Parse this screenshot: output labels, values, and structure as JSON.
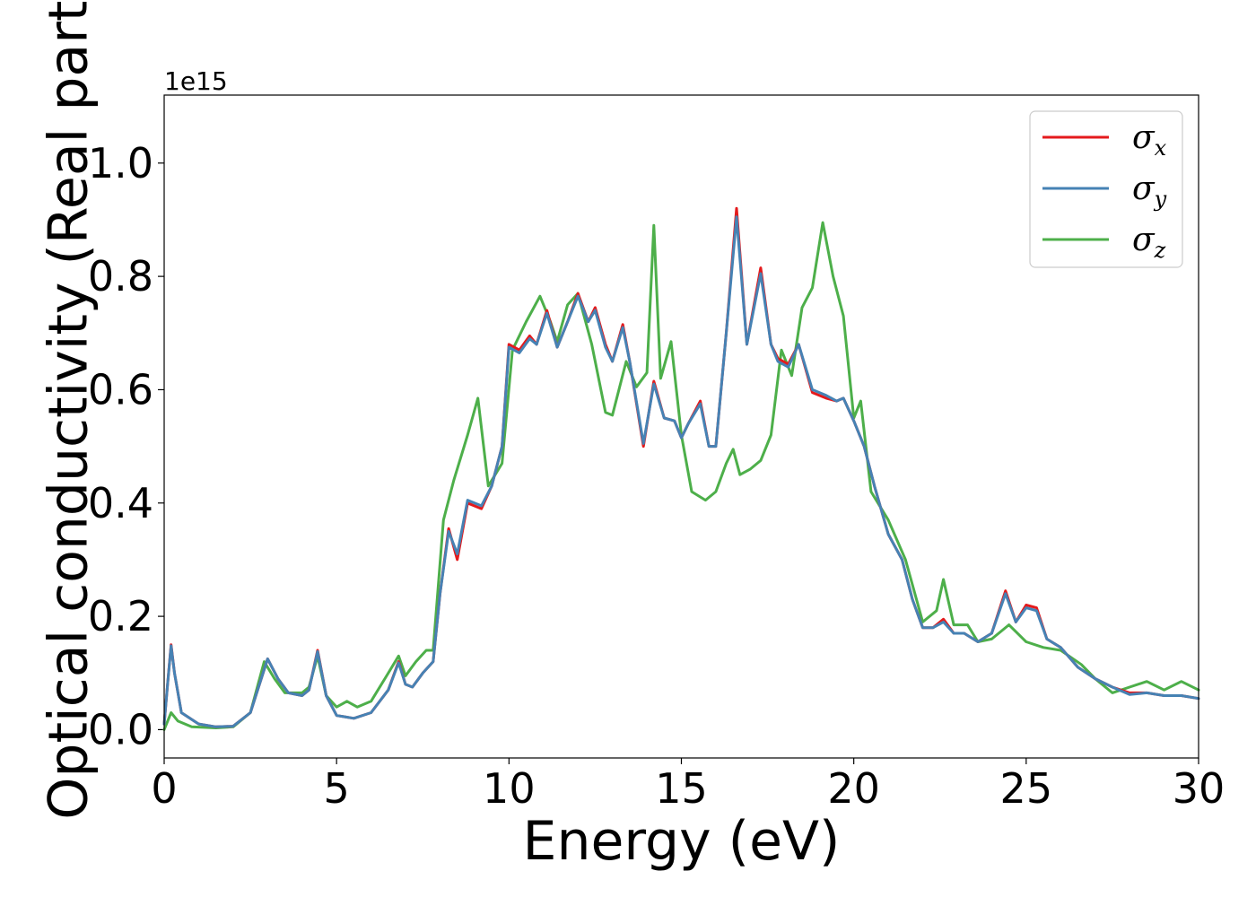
{
  "chart_data": {
    "type": "line",
    "title": "",
    "xlabel": "Energy (eV)",
    "ylabel": "Optical conductivity (Real part)",
    "y_offset_label": "1e15",
    "xlim": [
      0,
      30
    ],
    "ylim": [
      -0.05,
      1.12
    ],
    "x_ticks": [
      0,
      5,
      10,
      15,
      20,
      25,
      30
    ],
    "x_tick_labels": [
      "0",
      "5",
      "10",
      "15",
      "20",
      "25",
      "30"
    ],
    "y_ticks": [
      0.0,
      0.2,
      0.4,
      0.6,
      0.8,
      1.0
    ],
    "y_tick_labels": [
      "0.0",
      "0.2",
      "0.4",
      "0.6",
      "0.8",
      "1.0"
    ],
    "grid": false,
    "legend_position": "top-right",
    "series": [
      {
        "name": "σx",
        "symbol": "σ",
        "sub": "x",
        "color": "#e41a1c",
        "points": [
          [
            0,
            0.01
          ],
          [
            0.1,
            0.08
          ],
          [
            0.2,
            0.15
          ],
          [
            0.3,
            0.1
          ],
          [
            0.5,
            0.03
          ],
          [
            1,
            0.01
          ],
          [
            1.5,
            0.005
          ],
          [
            2,
            0.006
          ],
          [
            2.5,
            0.03
          ],
          [
            3,
            0.125
          ],
          [
            3.3,
            0.09
          ],
          [
            3.6,
            0.065
          ],
          [
            4,
            0.06
          ],
          [
            4.2,
            0.07
          ],
          [
            4.45,
            0.14
          ],
          [
            4.7,
            0.06
          ],
          [
            5,
            0.025
          ],
          [
            5.5,
            0.02
          ],
          [
            6,
            0.03
          ],
          [
            6.5,
            0.07
          ],
          [
            6.8,
            0.12
          ],
          [
            7,
            0.08
          ],
          [
            7.2,
            0.075
          ],
          [
            7.5,
            0.1
          ],
          [
            7.8,
            0.12
          ],
          [
            8.0,
            0.24
          ],
          [
            8.25,
            0.355
          ],
          [
            8.5,
            0.3
          ],
          [
            8.8,
            0.4
          ],
          [
            9.2,
            0.39
          ],
          [
            9.5,
            0.43
          ],
          [
            9.8,
            0.5
          ],
          [
            10,
            0.68
          ],
          [
            10.3,
            0.67
          ],
          [
            10.6,
            0.695
          ],
          [
            10.8,
            0.68
          ],
          [
            11.1,
            0.74
          ],
          [
            11.4,
            0.675
          ],
          [
            11.7,
            0.72
          ],
          [
            12.0,
            0.77
          ],
          [
            12.3,
            0.72
          ],
          [
            12.5,
            0.745
          ],
          [
            12.8,
            0.68
          ],
          [
            13.0,
            0.65
          ],
          [
            13.3,
            0.715
          ],
          [
            13.5,
            0.65
          ],
          [
            13.9,
            0.5
          ],
          [
            14.2,
            0.615
          ],
          [
            14.5,
            0.55
          ],
          [
            14.8,
            0.545
          ],
          [
            15.0,
            0.515
          ],
          [
            15.2,
            0.54
          ],
          [
            15.55,
            0.58
          ],
          [
            15.8,
            0.5
          ],
          [
            16.0,
            0.5
          ],
          [
            16.3,
            0.7
          ],
          [
            16.6,
            0.92
          ],
          [
            16.9,
            0.68
          ],
          [
            17.3,
            0.815
          ],
          [
            17.6,
            0.68
          ],
          [
            17.8,
            0.655
          ],
          [
            18.1,
            0.645
          ],
          [
            18.4,
            0.68
          ],
          [
            18.8,
            0.595
          ],
          [
            19.2,
            0.585
          ],
          [
            19.5,
            0.58
          ],
          [
            19.7,
            0.585
          ],
          [
            20,
            0.545
          ],
          [
            20.3,
            0.5
          ],
          [
            20.6,
            0.43
          ],
          [
            21,
            0.345
          ],
          [
            21.4,
            0.3
          ],
          [
            21.7,
            0.23
          ],
          [
            22,
            0.18
          ],
          [
            22.3,
            0.18
          ],
          [
            22.6,
            0.195
          ],
          [
            22.9,
            0.17
          ],
          [
            23.2,
            0.17
          ],
          [
            23.6,
            0.155
          ],
          [
            24.0,
            0.17
          ],
          [
            24.4,
            0.245
          ],
          [
            24.7,
            0.19
          ],
          [
            25,
            0.22
          ],
          [
            25.3,
            0.215
          ],
          [
            25.6,
            0.16
          ],
          [
            26,
            0.145
          ],
          [
            26.5,
            0.11
          ],
          [
            27,
            0.09
          ],
          [
            27.5,
            0.075
          ],
          [
            28,
            0.065
          ],
          [
            28.5,
            0.065
          ],
          [
            29,
            0.06
          ],
          [
            29.5,
            0.06
          ],
          [
            30,
            0.055
          ]
        ]
      },
      {
        "name": "σy",
        "symbol": "σ",
        "sub": "y",
        "color": "#4682b4",
        "points": [
          [
            0,
            0.01
          ],
          [
            0.1,
            0.08
          ],
          [
            0.2,
            0.148
          ],
          [
            0.3,
            0.1
          ],
          [
            0.5,
            0.03
          ],
          [
            1,
            0.01
          ],
          [
            1.5,
            0.005
          ],
          [
            2,
            0.006
          ],
          [
            2.5,
            0.03
          ],
          [
            3,
            0.125
          ],
          [
            3.3,
            0.09
          ],
          [
            3.6,
            0.065
          ],
          [
            4,
            0.06
          ],
          [
            4.2,
            0.07
          ],
          [
            4.45,
            0.138
          ],
          [
            4.7,
            0.06
          ],
          [
            5,
            0.025
          ],
          [
            5.5,
            0.02
          ],
          [
            6,
            0.03
          ],
          [
            6.5,
            0.07
          ],
          [
            6.8,
            0.118
          ],
          [
            7,
            0.08
          ],
          [
            7.2,
            0.075
          ],
          [
            7.5,
            0.1
          ],
          [
            7.8,
            0.12
          ],
          [
            8.0,
            0.24
          ],
          [
            8.25,
            0.35
          ],
          [
            8.5,
            0.31
          ],
          [
            8.8,
            0.405
          ],
          [
            9.2,
            0.395
          ],
          [
            9.5,
            0.43
          ],
          [
            9.8,
            0.5
          ],
          [
            10,
            0.675
          ],
          [
            10.3,
            0.665
          ],
          [
            10.6,
            0.69
          ],
          [
            10.8,
            0.68
          ],
          [
            11.1,
            0.735
          ],
          [
            11.4,
            0.675
          ],
          [
            11.7,
            0.72
          ],
          [
            12.0,
            0.765
          ],
          [
            12.3,
            0.72
          ],
          [
            12.5,
            0.74
          ],
          [
            12.8,
            0.675
          ],
          [
            13.0,
            0.65
          ],
          [
            13.3,
            0.71
          ],
          [
            13.5,
            0.65
          ],
          [
            13.9,
            0.505
          ],
          [
            14.2,
            0.61
          ],
          [
            14.5,
            0.55
          ],
          [
            14.8,
            0.545
          ],
          [
            15.0,
            0.515
          ],
          [
            15.2,
            0.54
          ],
          [
            15.55,
            0.575
          ],
          [
            15.8,
            0.5
          ],
          [
            16.0,
            0.5
          ],
          [
            16.3,
            0.7
          ],
          [
            16.6,
            0.905
          ],
          [
            16.9,
            0.68
          ],
          [
            17.3,
            0.805
          ],
          [
            17.6,
            0.68
          ],
          [
            17.8,
            0.65
          ],
          [
            18.1,
            0.64
          ],
          [
            18.4,
            0.68
          ],
          [
            18.8,
            0.6
          ],
          [
            19.2,
            0.59
          ],
          [
            19.5,
            0.58
          ],
          [
            19.7,
            0.585
          ],
          [
            20,
            0.545
          ],
          [
            20.3,
            0.5
          ],
          [
            20.6,
            0.43
          ],
          [
            21,
            0.345
          ],
          [
            21.4,
            0.3
          ],
          [
            21.7,
            0.23
          ],
          [
            22,
            0.18
          ],
          [
            22.3,
            0.18
          ],
          [
            22.6,
            0.19
          ],
          [
            22.9,
            0.17
          ],
          [
            23.2,
            0.17
          ],
          [
            23.6,
            0.155
          ],
          [
            24.0,
            0.17
          ],
          [
            24.4,
            0.24
          ],
          [
            24.7,
            0.19
          ],
          [
            25,
            0.215
          ],
          [
            25.3,
            0.21
          ],
          [
            25.6,
            0.16
          ],
          [
            26,
            0.145
          ],
          [
            26.5,
            0.11
          ],
          [
            27,
            0.09
          ],
          [
            27.5,
            0.075
          ],
          [
            28,
            0.062
          ],
          [
            28.5,
            0.065
          ],
          [
            29,
            0.06
          ],
          [
            29.5,
            0.06
          ],
          [
            30,
            0.055
          ]
        ]
      },
      {
        "name": "σz",
        "symbol": "σ",
        "sub": "z",
        "color": "#4daf4a",
        "points": [
          [
            0,
            0.0
          ],
          [
            0.2,
            0.03
          ],
          [
            0.4,
            0.015
          ],
          [
            0.8,
            0.005
          ],
          [
            1.5,
            0.003
          ],
          [
            2,
            0.005
          ],
          [
            2.5,
            0.03
          ],
          [
            2.9,
            0.12
          ],
          [
            3.2,
            0.09
          ],
          [
            3.5,
            0.065
          ],
          [
            4,
            0.065
          ],
          [
            4.2,
            0.075
          ],
          [
            4.45,
            0.13
          ],
          [
            4.7,
            0.06
          ],
          [
            5,
            0.04
          ],
          [
            5.3,
            0.05
          ],
          [
            5.6,
            0.04
          ],
          [
            6,
            0.05
          ],
          [
            6.4,
            0.09
          ],
          [
            6.8,
            0.13
          ],
          [
            7.0,
            0.095
          ],
          [
            7.3,
            0.12
          ],
          [
            7.6,
            0.14
          ],
          [
            7.8,
            0.14
          ],
          [
            8.1,
            0.37
          ],
          [
            8.4,
            0.44
          ],
          [
            8.8,
            0.52
          ],
          [
            9.1,
            0.585
          ],
          [
            9.4,
            0.43
          ],
          [
            9.8,
            0.47
          ],
          [
            10.1,
            0.67
          ],
          [
            10.5,
            0.72
          ],
          [
            10.9,
            0.765
          ],
          [
            11.2,
            0.72
          ],
          [
            11.4,
            0.685
          ],
          [
            11.7,
            0.75
          ],
          [
            12.0,
            0.77
          ],
          [
            12.4,
            0.68
          ],
          [
            12.8,
            0.56
          ],
          [
            13.0,
            0.555
          ],
          [
            13.4,
            0.65
          ],
          [
            13.7,
            0.605
          ],
          [
            14.0,
            0.63
          ],
          [
            14.2,
            0.89
          ],
          [
            14.4,
            0.62
          ],
          [
            14.7,
            0.685
          ],
          [
            15.0,
            0.52
          ],
          [
            15.3,
            0.42
          ],
          [
            15.7,
            0.405
          ],
          [
            16.0,
            0.42
          ],
          [
            16.3,
            0.47
          ],
          [
            16.5,
            0.495
          ],
          [
            16.7,
            0.45
          ],
          [
            17.0,
            0.46
          ],
          [
            17.3,
            0.475
          ],
          [
            17.6,
            0.52
          ],
          [
            17.9,
            0.67
          ],
          [
            18.2,
            0.625
          ],
          [
            18.5,
            0.745
          ],
          [
            18.8,
            0.78
          ],
          [
            19.1,
            0.895
          ],
          [
            19.4,
            0.8
          ],
          [
            19.7,
            0.73
          ],
          [
            20,
            0.55
          ],
          [
            20.2,
            0.58
          ],
          [
            20.5,
            0.42
          ],
          [
            21,
            0.37
          ],
          [
            21.5,
            0.3
          ],
          [
            22,
            0.19
          ],
          [
            22.4,
            0.21
          ],
          [
            22.6,
            0.265
          ],
          [
            22.9,
            0.185
          ],
          [
            23.3,
            0.185
          ],
          [
            23.6,
            0.155
          ],
          [
            24.0,
            0.16
          ],
          [
            24.5,
            0.185
          ],
          [
            25,
            0.155
          ],
          [
            25.5,
            0.145
          ],
          [
            26,
            0.14
          ],
          [
            26.6,
            0.115
          ],
          [
            27,
            0.09
          ],
          [
            27.5,
            0.065
          ],
          [
            28.0,
            0.075
          ],
          [
            28.5,
            0.085
          ],
          [
            29,
            0.07
          ],
          [
            29.5,
            0.085
          ],
          [
            30,
            0.07
          ]
        ]
      }
    ]
  }
}
